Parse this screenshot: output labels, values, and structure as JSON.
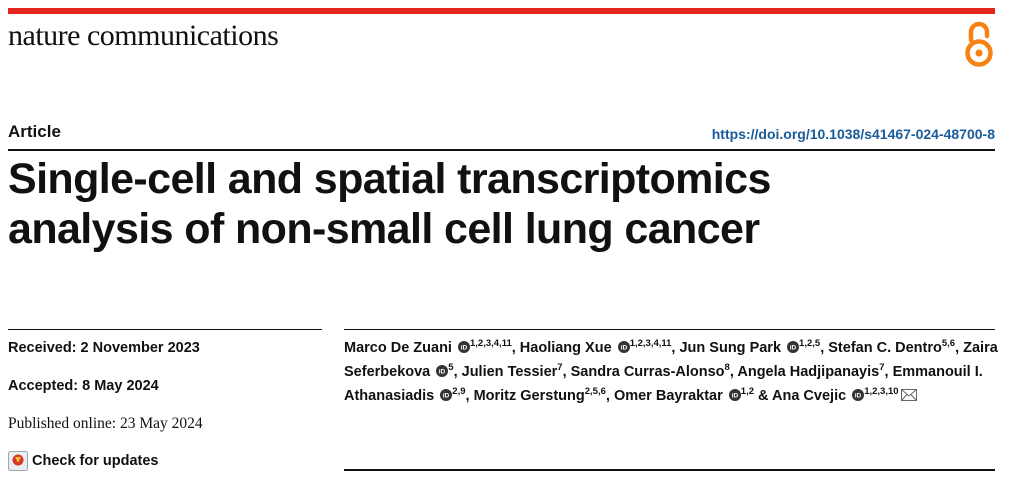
{
  "journal": {
    "name": "nature communications"
  },
  "article": {
    "type": "Article",
    "doi": "https://doi.org/10.1038/s41467-024-48700-8",
    "title_lines": [
      "Single-cell and spatial transcriptomics",
      "analysis of non-small cell lung cancer"
    ]
  },
  "dates": {
    "received": "Received: 2 November 2023",
    "accepted": "Accepted: 8 May 2024",
    "published": "Published online: 23 May 2024"
  },
  "check_updates": "Check for updates",
  "authors": [
    {
      "name": "Marco De Zuani",
      "orcid": true,
      "aff": "1,2,3,4,11",
      "sep": ", "
    },
    {
      "name": "Haoliang Xue",
      "orcid": true,
      "aff": "1,2,3,4,11",
      "sep": ", "
    },
    {
      "name": "Jun Sung Park",
      "orcid": true,
      "aff": "1,2,5",
      "sep": ", "
    },
    {
      "name": "Stefan C. Dentro",
      "orcid": false,
      "aff": "5,6",
      "sep": ", "
    },
    {
      "name": "Zaira Seferbekova",
      "orcid": true,
      "aff": "5",
      "sep": ", "
    },
    {
      "name": "Julien Tessier",
      "orcid": false,
      "aff": "7",
      "sep": ", "
    },
    {
      "name": "Sandra Curras-Alonso",
      "orcid": false,
      "aff": "8",
      "sep": ", "
    },
    {
      "name": "Angela Hadjipanayis",
      "orcid": false,
      "aff": "7",
      "sep": ", "
    },
    {
      "name": "Emmanouil I. Athanasiadis",
      "orcid": true,
      "aff": "2,9",
      "sep": ", "
    },
    {
      "name": "Moritz Gerstung",
      "orcid": false,
      "aff": "2,5,6",
      "sep": ", "
    },
    {
      "name": "Omer Bayraktar",
      "orcid": true,
      "aff": "1,2",
      "sep": " & "
    },
    {
      "name": "Ana Cvejic",
      "orcid": true,
      "aff": "1,2,3,10",
      "sep": "",
      "corresponding": true
    }
  ],
  "colors": {
    "accent_red": "#e3261c",
    "open_access_orange": "#f68212",
    "link_blue": "#1a5b9a",
    "orcid_icon": "#333333"
  }
}
